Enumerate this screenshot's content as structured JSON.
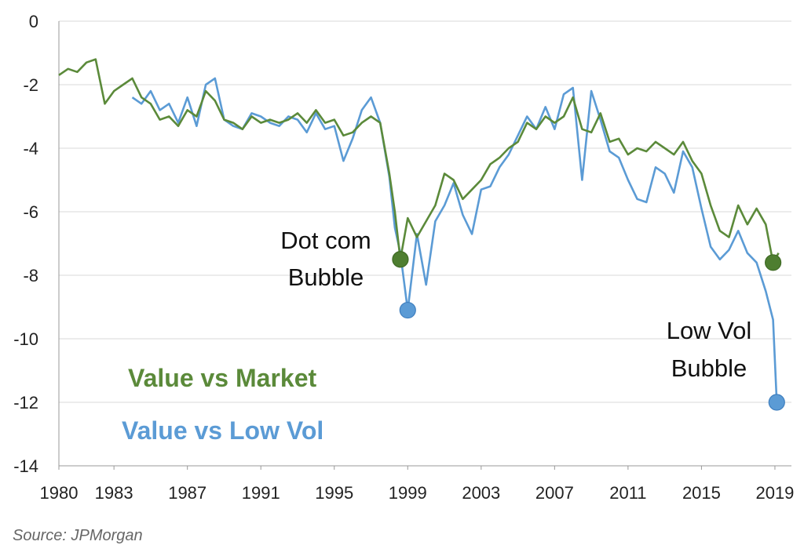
{
  "source_text": "Source: JPMorgan",
  "colors": {
    "value_vs_market": "#5b8a3a",
    "value_vs_low_vol": "#5b9bd5",
    "marker_green": "#4e7e30",
    "marker_blue": "#5b9bd5",
    "gridline": "#d9d9d9",
    "axis": "#999999"
  },
  "chart_data": {
    "type": "line",
    "title": "",
    "xlabel": "",
    "ylabel": "",
    "xlim": [
      1980,
      2019.9
    ],
    "ylim": [
      -14,
      0
    ],
    "grid": "horizontal",
    "x_ticks": [
      "1980",
      "1983",
      "1987",
      "1991",
      "1995",
      "1999",
      "2003",
      "2007",
      "2011",
      "2015",
      "2019"
    ],
    "y_ticks": [
      "0",
      "-2",
      "-4",
      "-6",
      "-8",
      "-10",
      "-12",
      "-14"
    ],
    "legend_entries": [
      "Value vs Market",
      "Value vs Low Vol"
    ],
    "annotations": [
      {
        "lines": [
          "Dot com",
          "Bubble"
        ],
        "x": 1998.6,
        "y": -7.5
      },
      {
        "lines": [
          "Low Vol",
          "Bubble"
        ],
        "x": 2019.0,
        "y": -12.0
      }
    ],
    "highlight_points": [
      {
        "series": "Value vs Market",
        "x": 1998.6,
        "y": -7.5
      },
      {
        "series": "Value vs Low Vol",
        "x": 1999.0,
        "y": -9.1
      },
      {
        "series": "Value vs Market",
        "x": 2018.9,
        "y": -7.6
      },
      {
        "series": "Value vs Low Vol",
        "x": 2019.1,
        "y": -12.0
      }
    ],
    "series": [
      {
        "name": "Value vs Market",
        "x": [
          1980.0,
          1980.5,
          1981.0,
          1981.5,
          1982.0,
          1982.5,
          1983.0,
          1983.5,
          1984.0,
          1984.5,
          1985.0,
          1985.5,
          1986.0,
          1986.5,
          1987.0,
          1987.5,
          1988.0,
          1988.5,
          1989.0,
          1989.5,
          1990.0,
          1990.5,
          1991.0,
          1991.5,
          1992.0,
          1992.5,
          1993.0,
          1993.5,
          1994.0,
          1994.5,
          1995.0,
          1995.5,
          1996.0,
          1996.5,
          1997.0,
          1997.5,
          1998.0,
          1998.3,
          1998.6,
          1999.0,
          1999.5,
          2000.0,
          2000.5,
          2001.0,
          2001.5,
          2002.0,
          2002.5,
          2003.0,
          2003.5,
          2004.0,
          2004.5,
          2005.0,
          2005.5,
          2006.0,
          2006.5,
          2007.0,
          2007.5,
          2008.0,
          2008.5,
          2009.0,
          2009.5,
          2010.0,
          2010.5,
          2011.0,
          2011.5,
          2012.0,
          2012.5,
          2013.0,
          2013.5,
          2014.0,
          2014.5,
          2015.0,
          2015.5,
          2016.0,
          2016.5,
          2017.0,
          2017.5,
          2018.0,
          2018.5,
          2018.9,
          2019.2
        ],
        "values": [
          -1.7,
          -1.5,
          -1.6,
          -1.3,
          -1.2,
          -2.6,
          -2.2,
          -2.0,
          -1.8,
          -2.4,
          -2.6,
          -3.1,
          -3.0,
          -3.3,
          -2.8,
          -3.0,
          -2.2,
          -2.5,
          -3.1,
          -3.2,
          -3.4,
          -3.0,
          -3.2,
          -3.1,
          -3.2,
          -3.1,
          -2.9,
          -3.2,
          -2.8,
          -3.2,
          -3.1,
          -3.6,
          -3.5,
          -3.2,
          -3.0,
          -3.2,
          -4.8,
          -6.0,
          -7.5,
          -6.2,
          -6.8,
          -6.3,
          -5.8,
          -4.8,
          -5.0,
          -5.6,
          -5.3,
          -5.0,
          -4.5,
          -4.3,
          -4.0,
          -3.8,
          -3.2,
          -3.4,
          -3.0,
          -3.2,
          -3.0,
          -2.4,
          -3.4,
          -3.5,
          -2.9,
          -3.8,
          -3.7,
          -4.2,
          -4.0,
          -4.1,
          -3.8,
          -4.0,
          -4.2,
          -3.8,
          -4.4,
          -4.8,
          -5.8,
          -6.6,
          -6.8,
          -5.8,
          -6.4,
          -5.9,
          -6.4,
          -7.6,
          -7.3
        ]
      },
      {
        "name": "Value vs Low Vol",
        "x": [
          1984.0,
          1984.5,
          1985.0,
          1985.5,
          1986.0,
          1986.5,
          1987.0,
          1987.5,
          1988.0,
          1988.5,
          1989.0,
          1989.5,
          1990.0,
          1990.5,
          1991.0,
          1991.5,
          1992.0,
          1992.5,
          1993.0,
          1993.5,
          1994.0,
          1994.5,
          1995.0,
          1995.5,
          1996.0,
          1996.5,
          1997.0,
          1997.5,
          1998.0,
          1998.3,
          1998.6,
          1999.0,
          1999.5,
          2000.0,
          2000.5,
          2001.0,
          2001.5,
          2002.0,
          2002.5,
          2003.0,
          2003.5,
          2004.0,
          2004.5,
          2005.0,
          2005.5,
          2006.0,
          2006.5,
          2007.0,
          2007.5,
          2008.0,
          2008.5,
          2009.0,
          2009.5,
          2010.0,
          2010.5,
          2011.0,
          2011.5,
          2012.0,
          2012.5,
          2013.0,
          2013.5,
          2014.0,
          2014.5,
          2015.0,
          2015.5,
          2016.0,
          2016.5,
          2017.0,
          2017.5,
          2018.0,
          2018.5,
          2018.9,
          2019.1
        ],
        "values": [
          -2.4,
          -2.6,
          -2.2,
          -2.8,
          -2.6,
          -3.2,
          -2.4,
          -3.3,
          -2.0,
          -1.8,
          -3.1,
          -3.3,
          -3.4,
          -2.9,
          -3.0,
          -3.2,
          -3.3,
          -3.0,
          -3.1,
          -3.5,
          -2.9,
          -3.4,
          -3.3,
          -4.4,
          -3.7,
          -2.8,
          -2.4,
          -3.2,
          -4.9,
          -6.5,
          -7.3,
          -9.1,
          -6.7,
          -8.3,
          -6.3,
          -5.8,
          -5.1,
          -6.1,
          -6.7,
          -5.3,
          -5.2,
          -4.6,
          -4.2,
          -3.6,
          -3.0,
          -3.4,
          -2.7,
          -3.4,
          -2.3,
          -2.1,
          -5.0,
          -2.2,
          -3.1,
          -4.1,
          -4.3,
          -5.0,
          -5.6,
          -5.7,
          -4.6,
          -4.8,
          -5.4,
          -4.1,
          -4.6,
          -5.9,
          -7.1,
          -7.5,
          -7.2,
          -6.6,
          -7.3,
          -7.6,
          -8.5,
          -9.4,
          -12.0
        ]
      }
    ]
  }
}
